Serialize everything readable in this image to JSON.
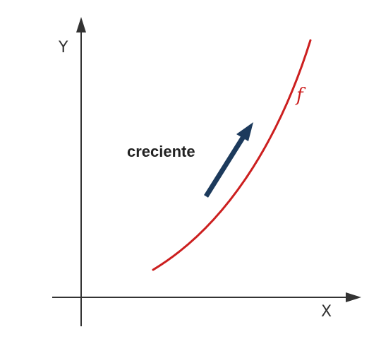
{
  "axes": {
    "x_label": "X",
    "y_label": "Y"
  },
  "curve": {
    "label": "f"
  },
  "annotation": {
    "text": "creciente"
  },
  "colors": {
    "axis": "#333333",
    "curve": "#cc1f1f",
    "arrow": "#1c3a5c",
    "text": "#222222"
  }
}
